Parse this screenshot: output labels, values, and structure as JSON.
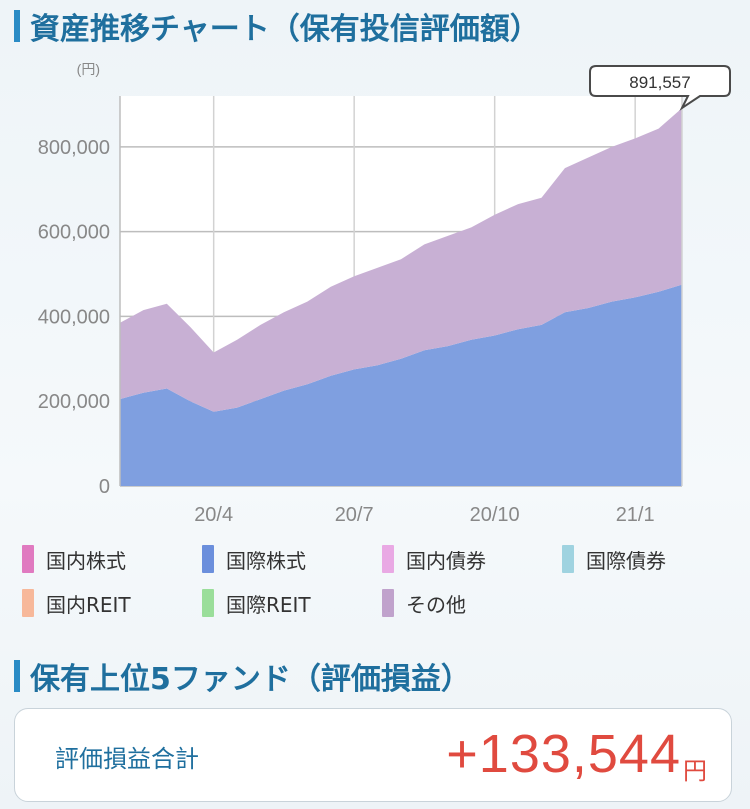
{
  "header": {
    "title": "資産推移チャート（保有投信評価額）"
  },
  "chart_data": {
    "type": "area",
    "stacked": true,
    "y_unit": "(円)",
    "ylim": [
      0,
      920000
    ],
    "y_ticks": [
      0,
      200000,
      400000,
      600000,
      800000
    ],
    "y_tick_labels": [
      "0",
      "200,000",
      "400,000",
      "600,000",
      "800,000"
    ],
    "x_tick_labels": [
      "20/4",
      "20/7",
      "20/10",
      "21/1"
    ],
    "x_tick_positions": [
      2,
      5,
      8,
      11
    ],
    "xlim": [
      0,
      12
    ],
    "grid": true,
    "callout": "891,557",
    "series": [
      {
        "name": "国際株式",
        "color": "#7f9fe0",
        "x": [
          0,
          0.5,
          1,
          1.5,
          2,
          2.5,
          3,
          3.5,
          4,
          4.5,
          5,
          5.5,
          6,
          6.5,
          7,
          7.5,
          8,
          8.5,
          9,
          9.5,
          10,
          10.5,
          11,
          11.5,
          12
        ],
        "values": [
          205000,
          220000,
          230000,
          200000,
          175000,
          185000,
          205000,
          225000,
          240000,
          260000,
          275000,
          285000,
          300000,
          320000,
          330000,
          345000,
          355000,
          370000,
          380000,
          410000,
          420000,
          435000,
          445000,
          458000,
          475000
        ]
      },
      {
        "name": "その他",
        "color": "#c8b0d4",
        "x": [
          0,
          0.5,
          1,
          1.5,
          2,
          2.5,
          3,
          3.5,
          4,
          4.5,
          5,
          5.5,
          6,
          6.5,
          7,
          7.5,
          8,
          8.5,
          9,
          9.5,
          10,
          10.5,
          11,
          11.5,
          12
        ],
        "values": [
          180000,
          195000,
          200000,
          175000,
          140000,
          160000,
          175000,
          185000,
          195000,
          210000,
          220000,
          230000,
          235000,
          250000,
          260000,
          265000,
          285000,
          295000,
          300000,
          340000,
          355000,
          365000,
          375000,
          385000,
          416557
        ]
      }
    ]
  },
  "legend": [
    {
      "label": "国内株式",
      "color": "#e07ac0"
    },
    {
      "label": "国際株式",
      "color": "#6b8fdc"
    },
    {
      "label": "国内債券",
      "color": "#e9a9e4"
    },
    {
      "label": "国際債券",
      "color": "#9fd3e0"
    },
    {
      "label": "国内REIT",
      "color": "#f7b89a"
    },
    {
      "label": "国際REIT",
      "color": "#9ade9a"
    },
    {
      "label": "その他",
      "color": "#c0a2cc"
    }
  ],
  "section2": {
    "title": "保有上位5ファンド（評価損益）"
  },
  "summary": {
    "label": "評価損益合計",
    "value": "+133,544",
    "unit": "円"
  }
}
